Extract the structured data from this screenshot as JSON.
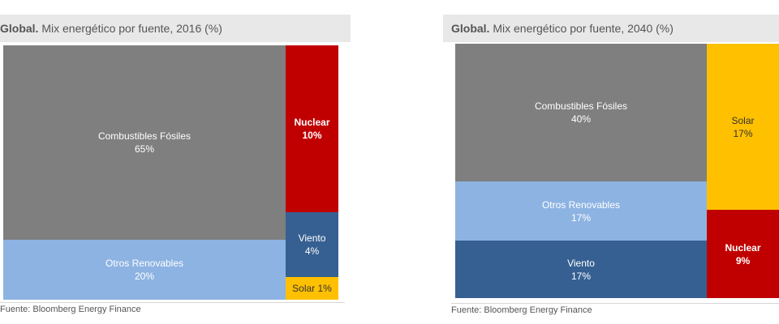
{
  "colors": {
    "combustibles": "#7f7f7f",
    "otros": "#8db3e2",
    "viento": "#366092",
    "nuclear": "#c00000",
    "solar": "#ffc000",
    "title_background": "#e8e8e8"
  },
  "chart_data": [
    {
      "type": "treemap",
      "title_bold": "Global.",
      "title_rest": " Mix energético por fuente, 2016 (%)",
      "source": "Fuente: Bloomberg Energy Finance",
      "legend": "none",
      "grid": false,
      "tiles": [
        {
          "key": "combustibles",
          "label": "Combustibles Fósiles",
          "value": 65,
          "value_label": "65%",
          "text_color": "#ffffff",
          "bold": false
        },
        {
          "key": "otros",
          "label": "Otros Renovables",
          "value": 20,
          "value_label": "20%",
          "text_color": "#ffffff",
          "bold": false
        },
        {
          "key": "nuclear",
          "label": "Nuclear",
          "value": 10,
          "value_label": "10%",
          "text_color": "#ffffff",
          "bold": true
        },
        {
          "key": "viento",
          "label": "Viento",
          "value": 4,
          "value_label": "4%",
          "text_color": "#ffffff",
          "bold": false
        },
        {
          "key": "solar",
          "label": "Solar 1%",
          "value": 1,
          "value_label": "",
          "text_color": "#333333",
          "bold": false
        }
      ]
    },
    {
      "type": "treemap",
      "title_bold": "Global.",
      "title_rest": " Mix energético por fuente, 2040 (%)",
      "source": "Fuente: Bloomberg Energy Finance",
      "legend": "none",
      "grid": false,
      "tiles": [
        {
          "key": "combustibles",
          "label": "Combustibles Fósiles",
          "value": 40,
          "value_label": "40%",
          "text_color": "#ffffff",
          "bold": false
        },
        {
          "key": "otros",
          "label": "Otros Renovables",
          "value": 17,
          "value_label": "17%",
          "text_color": "#ffffff",
          "bold": false
        },
        {
          "key": "viento",
          "label": "Viento",
          "value": 17,
          "value_label": "17%",
          "text_color": "#ffffff",
          "bold": false
        },
        {
          "key": "solar",
          "label": "Solar",
          "value": 17,
          "value_label": "17%",
          "text_color": "#333333",
          "bold": false
        },
        {
          "key": "nuclear",
          "label": "Nuclear",
          "value": 9,
          "value_label": "9%",
          "text_color": "#ffffff",
          "bold": true
        }
      ]
    }
  ]
}
